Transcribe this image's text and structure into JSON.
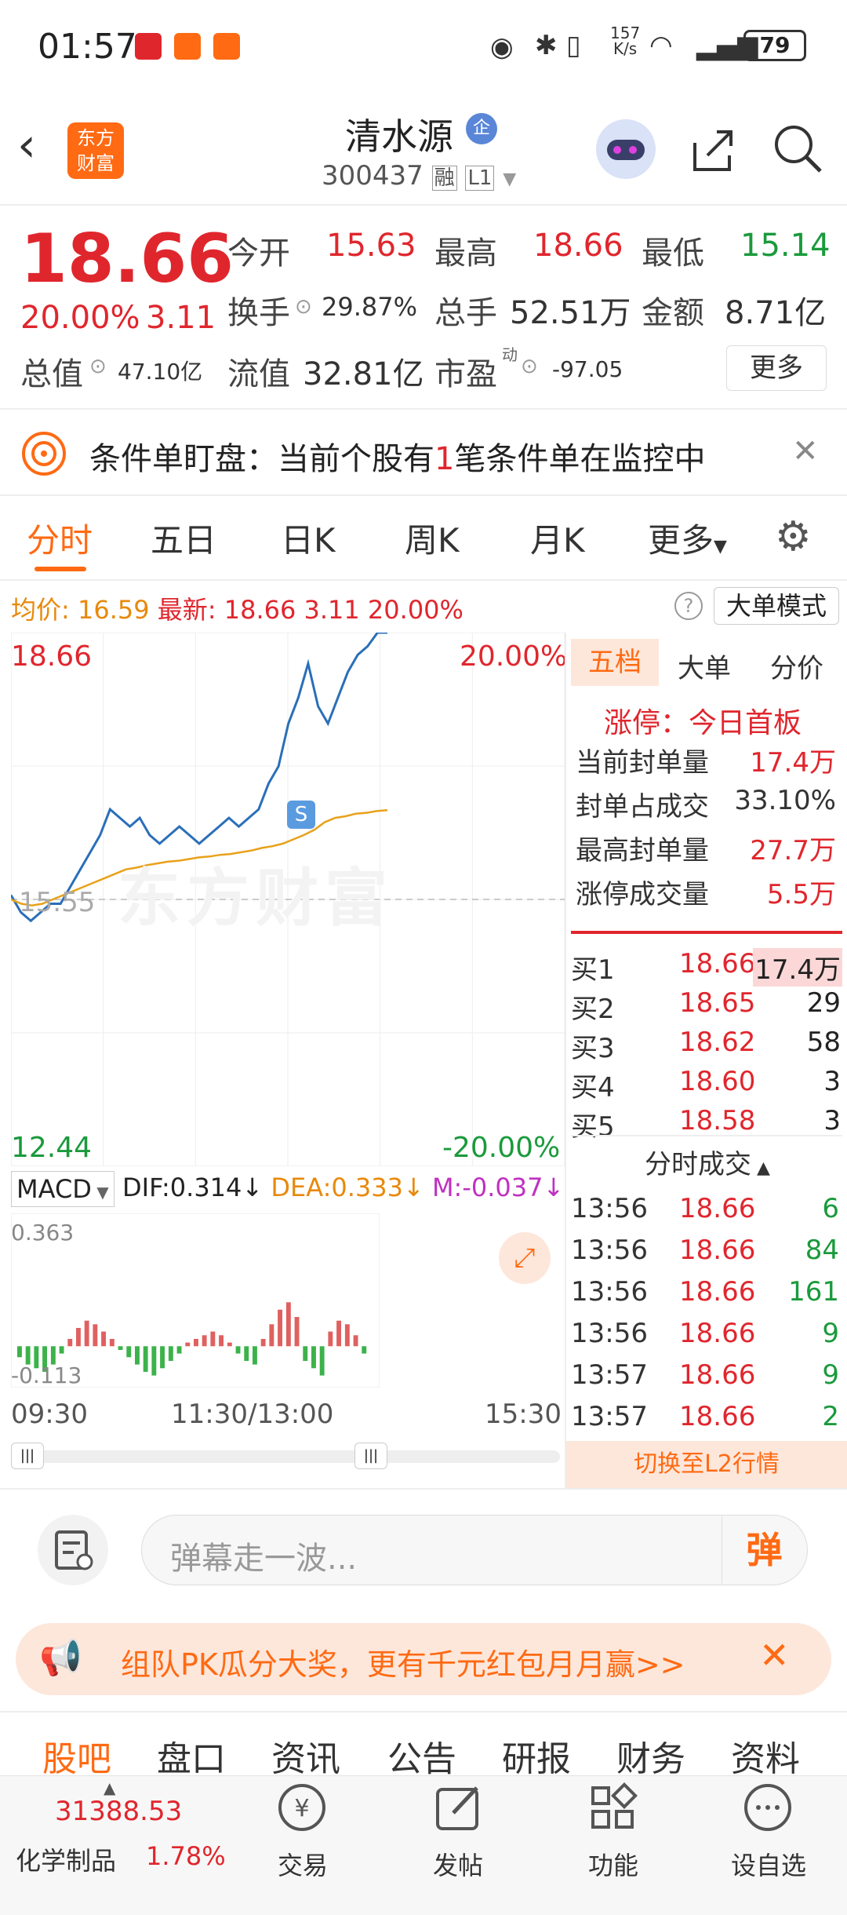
{
  "status_bar": {
    "time": "01:57",
    "network_speed_top": "157",
    "network_speed_bottom": "K/s",
    "battery": "79"
  },
  "header": {
    "title": "清水源",
    "badge": "企",
    "code": "300437",
    "tag_rong": "融",
    "tag_l1": "L1"
  },
  "quote": {
    "price": "18.66",
    "pct": "20.00%",
    "change": "3.11",
    "open_label": "今开",
    "open": "15.63",
    "high_label": "最高",
    "high": "18.66",
    "low_label": "最低",
    "low": "15.14",
    "turnover_label": "换手",
    "turnover": "29.87%",
    "volume_label": "总手",
    "volume": "52.51万",
    "amount_label": "金额",
    "amount": "8.71亿",
    "mcap_label": "总值",
    "mcap": "47.10亿",
    "float_label": "流值",
    "float": "32.81亿",
    "pe_label": "市盈",
    "pe_sup": "动",
    "pe": "-97.05",
    "more_button": "更多"
  },
  "notice": {
    "prefix": "条件单盯盘：当前个股有",
    "count": "1",
    "suffix": "笔条件单在监控中"
  },
  "tabs": [
    "分时",
    "五日",
    "日K",
    "周K",
    "月K",
    "更多"
  ],
  "info_line": {
    "avg_label": "均价:",
    "avg": "16.59",
    "latest_label": "最新:",
    "latest": "18.66",
    "change": "3.11",
    "pct": "20.00%",
    "mode_button": "大单模式"
  },
  "chart": {
    "y_top": "18.66",
    "y_top_pct": "20.00%",
    "y_bottom": "12.44",
    "y_bottom_pct": "-20.00%",
    "y_mid": "15.55",
    "watermark": "东方财富",
    "signal": "S",
    "x_labels": [
      "09:30",
      "11:30/13:00",
      "15:30"
    ],
    "macd_label": "MACD",
    "dif": "DIF:0.314",
    "dea": "DEA:0.333",
    "m": "M:-0.037",
    "macd_top": "0.363",
    "macd_bottom": "-0.113"
  },
  "chart_data": {
    "type": "line",
    "ylim": [
      12.44,
      18.66
    ],
    "baseline": 15.55,
    "series": [],
    "price": [
      15.6,
      15.4,
      15.3,
      15.4,
      15.5,
      15.5,
      15.7,
      15.9,
      16.1,
      16.3,
      16.6,
      16.5,
      16.4,
      16.5,
      16.3,
      16.2,
      16.3,
      16.4,
      16.3,
      16.2,
      16.3,
      16.4,
      16.5,
      16.4,
      16.5,
      16.6,
      16.9,
      17.1,
      17.6,
      17.9,
      18.3,
      17.8,
      17.6,
      17.9,
      18.2,
      18.4,
      18.5,
      18.66,
      18.66
    ],
    "average": [
      15.55,
      15.5,
      15.48,
      15.5,
      15.55,
      15.6,
      15.65,
      15.7,
      15.75,
      15.8,
      15.85,
      15.9,
      15.92,
      15.95,
      15.97,
      15.99,
      16.0,
      16.02,
      16.04,
      16.05,
      16.07,
      16.08,
      16.1,
      16.12,
      16.15,
      16.17,
      16.2,
      16.25,
      16.3,
      16.36,
      16.45,
      16.5,
      16.52,
      16.55,
      16.56,
      16.58,
      16.59
    ],
    "macd_hist": [
      -0.03,
      -0.05,
      -0.06,
      -0.07,
      -0.05,
      -0.02,
      0.02,
      0.05,
      0.07,
      0.06,
      0.04,
      0.02,
      -0.01,
      -0.03,
      -0.05,
      -0.07,
      -0.08,
      -0.06,
      -0.04,
      -0.02,
      0.01,
      0.02,
      0.03,
      0.04,
      0.03,
      0.01,
      -0.02,
      -0.04,
      -0.05,
      0.02,
      0.06,
      0.1,
      0.12,
      0.08,
      -0.04,
      -0.06,
      -0.08,
      0.04,
      0.07,
      0.06,
      0.03,
      -0.02
    ]
  },
  "side_tabs": [
    "五档",
    "大单",
    "分价"
  ],
  "limit_up": {
    "title": "涨停：今日首板",
    "rows": [
      {
        "label": "当前封单量",
        "value": "17.4万"
      },
      {
        "label": "封单占成交",
        "value": "33.10%"
      },
      {
        "label": "最高封单量",
        "value": "27.7万"
      },
      {
        "label": "涨停成交量",
        "value": "5.5万"
      }
    ]
  },
  "bids": [
    {
      "label": "买1",
      "price": "18.66",
      "vol": "17.4万"
    },
    {
      "label": "买2",
      "price": "18.65",
      "vol": "29"
    },
    {
      "label": "买3",
      "price": "18.62",
      "vol": "58"
    },
    {
      "label": "买4",
      "price": "18.60",
      "vol": "3"
    },
    {
      "label": "买5",
      "price": "18.58",
      "vol": "3"
    }
  ],
  "trades_title": "分时成交",
  "trades": [
    {
      "time": "13:56",
      "price": "18.66",
      "vol": "6"
    },
    {
      "time": "13:56",
      "price": "18.66",
      "vol": "84"
    },
    {
      "time": "13:56",
      "price": "18.66",
      "vol": "161"
    },
    {
      "time": "13:56",
      "price": "18.66",
      "vol": "9"
    },
    {
      "time": "13:57",
      "price": "18.66",
      "vol": "9"
    },
    {
      "time": "13:57",
      "price": "18.66",
      "vol": "2"
    }
  ],
  "l2_button": "切换至L2行情",
  "comment": {
    "placeholder": "弹幕走一波...",
    "danmu_btn": "弹"
  },
  "promo": {
    "text": "组队PK瓜分大奖，更有千元红包月月赢>>"
  },
  "bottom_tabs": [
    "股吧",
    "盘口",
    "资讯",
    "公告",
    "研报",
    "财务",
    "资料"
  ],
  "nav": {
    "index_value": "31388.53",
    "sector": "化学制品",
    "sector_pct": "1.78%",
    "items": [
      "交易",
      "发帖",
      "功能",
      "设自选"
    ]
  },
  "colors": {
    "up": "#e0262d",
    "down": "#1a9a3c",
    "accent": "#ff6a13",
    "avg": "#e8a11a",
    "price_line": "#2a6fb8"
  }
}
